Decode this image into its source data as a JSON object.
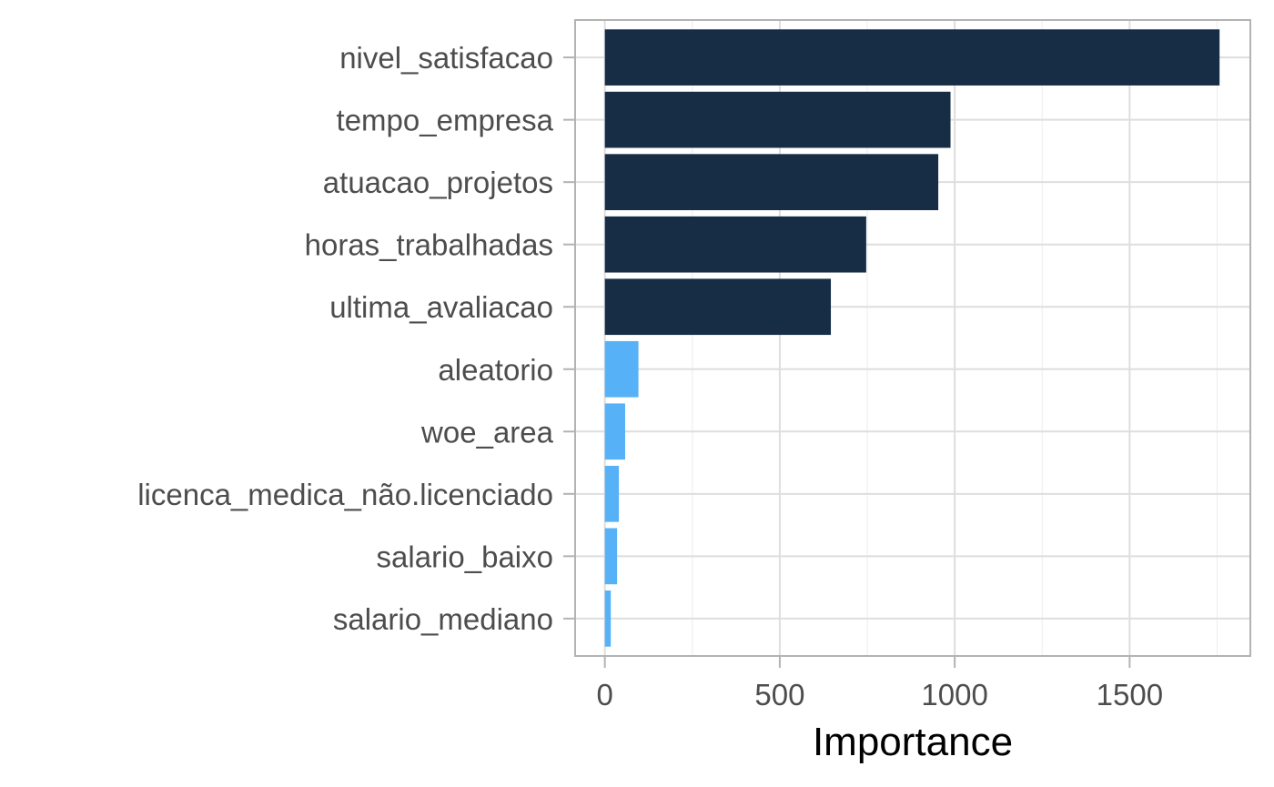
{
  "chart_data": {
    "type": "bar",
    "orientation": "horizontal",
    "categories": [
      "nivel_satisfacao",
      "tempo_empresa",
      "atuacao_projetos",
      "horas_trabalhadas",
      "ultima_avaliacao",
      "aleatorio",
      "woe_area",
      "licenca_medica_não.licenciado",
      "salario_baixo",
      "salario_mediano"
    ],
    "values": [
      1757,
      988,
      953,
      747,
      646,
      96,
      58,
      40,
      35,
      17
    ],
    "bar_colors": [
      "#172c45",
      "#172c45",
      "#172c45",
      "#172c45",
      "#172c45",
      "#56b1f7",
      "#56b1f7",
      "#56b1f7",
      "#56b1f7",
      "#56b1f7"
    ],
    "title": "",
    "xlabel": "Importance",
    "ylabel": "",
    "xlim": [
      -85,
      1845
    ],
    "xticks": [
      0,
      500,
      1000,
      1500
    ],
    "xtick_labels": [
      "0",
      "500",
      "1000",
      "1500"
    ],
    "grid": true,
    "legend": "none",
    "colors": {
      "panel_border": "#b3b3b3",
      "grid_major": "#dedede",
      "grid_minor": "#efefef",
      "tick": "#b3b3b3"
    }
  }
}
